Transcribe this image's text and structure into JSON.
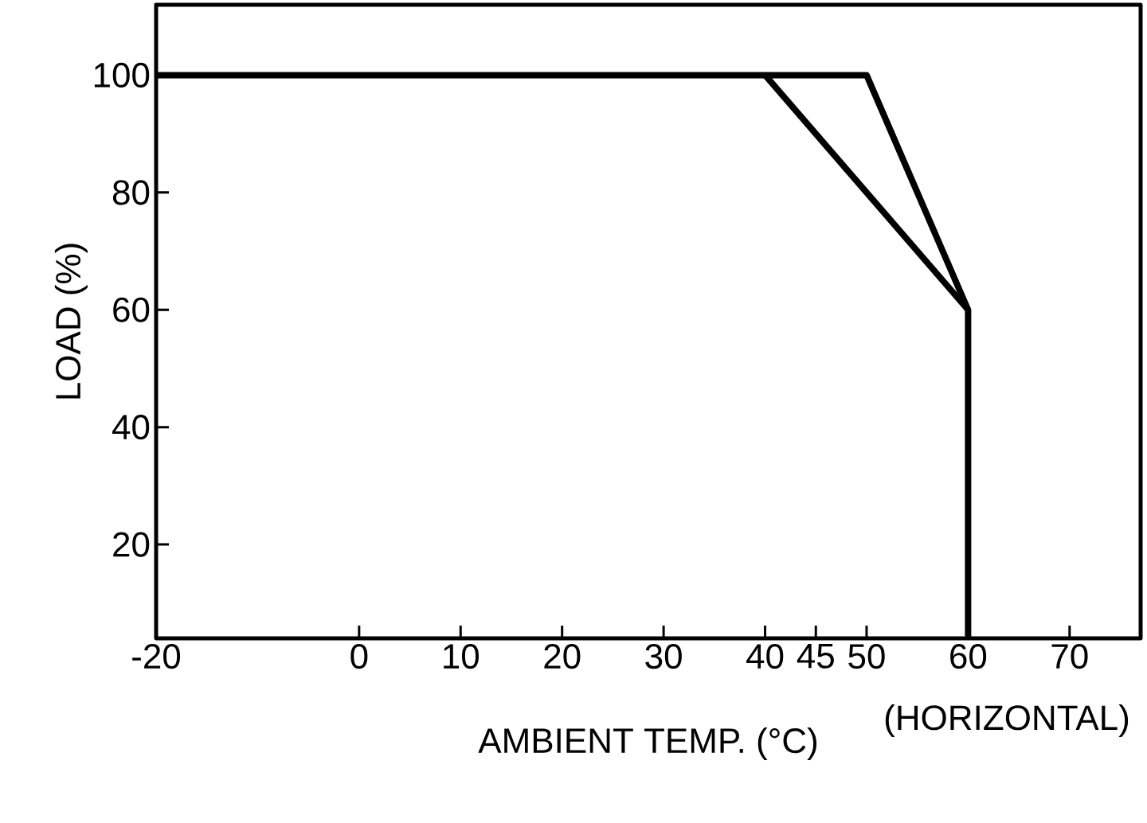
{
  "chart_data": {
    "type": "line",
    "xlabel": "AMBIENT TEMP. (°C)",
    "ylabel": "LOAD (%)",
    "annotations": [
      "(HORIZONTAL)"
    ],
    "series": [
      {
        "color": "#000000",
        "x": [
          -20,
          50,
          60,
          60
        ],
        "values": [
          100,
          100,
          60,
          4
        ]
      },
      {
        "color": "#000000",
        "x": [
          40,
          60
        ],
        "values": [
          100,
          60
        ]
      }
    ],
    "xlim": [
      -20,
      77
    ],
    "ylim": [
      4,
      112
    ],
    "xticks": [
      -20,
      0,
      10,
      20,
      30,
      40,
      45,
      50,
      60,
      70
    ],
    "yticks": [
      20,
      40,
      60,
      80,
      100
    ],
    "grid": false,
    "legend": false,
    "marker": "none",
    "line_style": "solid"
  }
}
